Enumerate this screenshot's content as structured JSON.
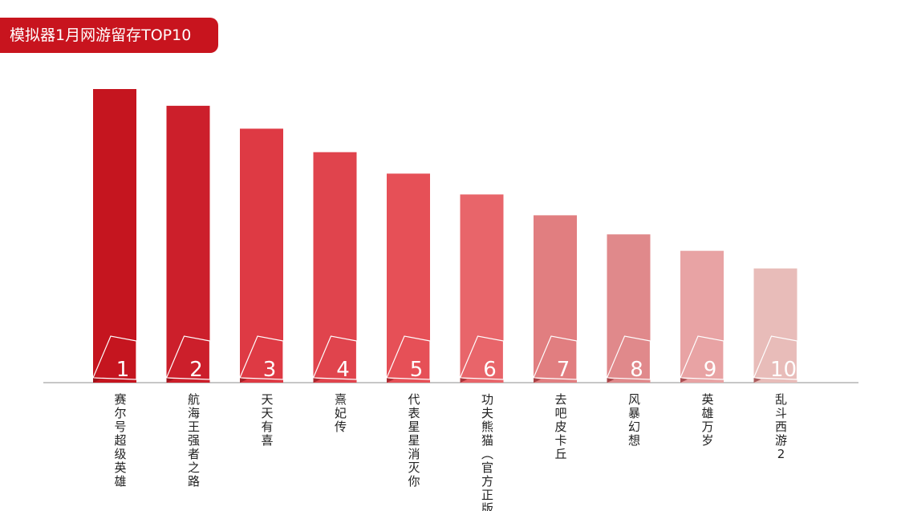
{
  "title": "模拟器1月网游留存TOP10",
  "chart_data": {
    "type": "bar",
    "title": "模拟器1月网游留存TOP10",
    "xlabel": "",
    "ylabel": "",
    "categories": [
      "赛尔号超级英雄",
      "航海王强者之路",
      "天天有喜",
      "熹妃传",
      "代表星星消灭你",
      "功夫熊猫（官方正版）",
      "去吧皮卡丘",
      "风暴幻想",
      "英雄万岁",
      "乱斗西游2"
    ],
    "ranks": [
      "1",
      "2",
      "3",
      "4",
      "5",
      "6",
      "7",
      "8",
      "9",
      "10"
    ],
    "values": [
      100,
      94.3,
      86.5,
      78.5,
      71.2,
      64.1,
      57,
      50.5,
      44.9,
      38.9
    ],
    "ylim": [
      0,
      100
    ],
    "grid": false,
    "legend": "none",
    "colors": [
      "#c5151f",
      "#cc1f2b",
      "#de3a44",
      "#e0444d",
      "#e65057",
      "#e8656a",
      "#e17e80",
      "#e0898b",
      "#e8a3a4",
      "#e8bcb9"
    ]
  }
}
